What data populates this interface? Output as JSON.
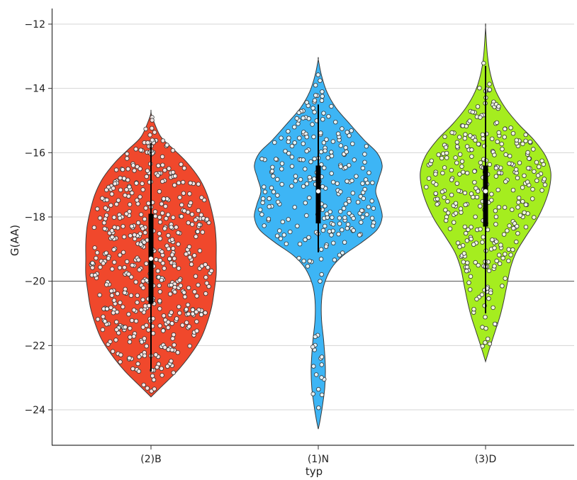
{
  "chart_data": {
    "type": "violin",
    "title": "",
    "xlabel": "typ",
    "ylabel": "G(AA)",
    "ylim": [
      -25.1,
      -11.5
    ],
    "yticks": [
      -12,
      -14,
      -16,
      -18,
      -20,
      -22,
      -24
    ],
    "ytick_labels": [
      "−12",
      "−14",
      "−16",
      "−18",
      "−20",
      "−22",
      "−24"
    ],
    "grid": "horizontal",
    "reference_line_y": -20,
    "legend": "none",
    "categories": [
      "(2)B",
      "(1)N",
      "(3)D"
    ],
    "series": [
      {
        "category": "(2)B",
        "color": "#f0482c",
        "density": [
          [
            -23.6,
            0.0
          ],
          [
            -23.3,
            0.15
          ],
          [
            -22.8,
            0.4
          ],
          [
            -22.3,
            0.6
          ],
          [
            -21.8,
            0.76
          ],
          [
            -21.3,
            0.86
          ],
          [
            -20.8,
            0.93
          ],
          [
            -20.3,
            0.97
          ],
          [
            -19.8,
            1.0
          ],
          [
            -19.3,
            1.0
          ],
          [
            -18.8,
            1.0
          ],
          [
            -18.3,
            0.98
          ],
          [
            -17.8,
            0.93
          ],
          [
            -17.3,
            0.86
          ],
          [
            -16.8,
            0.74
          ],
          [
            -16.3,
            0.55
          ],
          [
            -15.9,
            0.35
          ],
          [
            -15.5,
            0.15
          ],
          [
            -14.9,
            0.02
          ],
          [
            -14.7,
            0.0
          ]
        ],
        "box": {
          "q1": -20.7,
          "median": -19.3,
          "q3": -17.9,
          "whisker_low": -22.8,
          "whisker_high": -15.7
        },
        "n_points": 520
      },
      {
        "category": "(1)N",
        "color": "#3db5f5",
        "density": [
          [
            -24.6,
            0.0
          ],
          [
            -24.3,
            0.03
          ],
          [
            -23.8,
            0.07
          ],
          [
            -23.3,
            0.1
          ],
          [
            -22.8,
            0.11
          ],
          [
            -22.3,
            0.1
          ],
          [
            -21.8,
            0.08
          ],
          [
            -21.2,
            0.05
          ],
          [
            -20.6,
            0.05
          ],
          [
            -20.1,
            0.09
          ],
          [
            -19.6,
            0.2
          ],
          [
            -19.2,
            0.38
          ],
          [
            -18.8,
            0.66
          ],
          [
            -18.4,
            0.9
          ],
          [
            -18.0,
            0.98
          ],
          [
            -17.6,
            0.94
          ],
          [
            -17.2,
            0.88
          ],
          [
            -16.8,
            0.93
          ],
          [
            -16.4,
            0.98
          ],
          [
            -16.0,
            0.9
          ],
          [
            -15.6,
            0.7
          ],
          [
            -15.1,
            0.48
          ],
          [
            -14.6,
            0.27
          ],
          [
            -14.1,
            0.13
          ],
          [
            -13.6,
            0.05
          ],
          [
            -13.1,
            0.0
          ]
        ],
        "box": {
          "q1": -18.2,
          "median": -17.2,
          "q3": -16.4,
          "whisker_low": -19.1,
          "whisker_high": -14.5
        },
        "n_points": 260
      },
      {
        "category": "(3)D",
        "color": "#a5ed1f",
        "density": [
          [
            -22.5,
            0.0
          ],
          [
            -22.1,
            0.06
          ],
          [
            -21.6,
            0.14
          ],
          [
            -21.1,
            0.22
          ],
          [
            -20.6,
            0.28
          ],
          [
            -20.1,
            0.33
          ],
          [
            -19.6,
            0.38
          ],
          [
            -19.1,
            0.47
          ],
          [
            -18.6,
            0.62
          ],
          [
            -18.1,
            0.78
          ],
          [
            -17.6,
            0.9
          ],
          [
            -17.1,
            0.98
          ],
          [
            -16.6,
            1.0
          ],
          [
            -16.1,
            0.92
          ],
          [
            -15.6,
            0.74
          ],
          [
            -15.1,
            0.5
          ],
          [
            -14.6,
            0.3
          ],
          [
            -14.1,
            0.16
          ],
          [
            -13.6,
            0.08
          ],
          [
            -13.0,
            0.03
          ],
          [
            -12.1,
            0.0
          ]
        ],
        "box": {
          "q1": -18.3,
          "median": -17.2,
          "q3": -16.4,
          "whisker_low": -21.0,
          "whisker_high": -13.3
        },
        "n_points": 330
      }
    ]
  }
}
